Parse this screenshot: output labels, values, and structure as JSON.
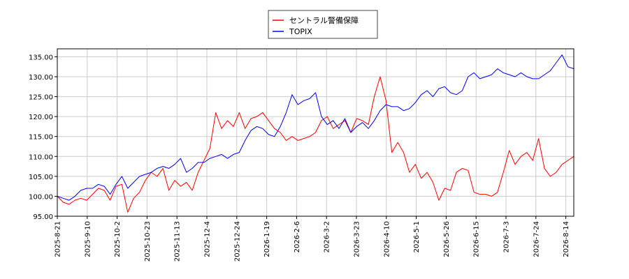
{
  "chart_data": {
    "type": "line",
    "title": "",
    "xlabel": "",
    "ylabel": "",
    "ylim": [
      95.0,
      137.0
    ],
    "yticks": [
      "95.00",
      "100.00",
      "105.00",
      "110.00",
      "115.00",
      "120.00",
      "125.00",
      "130.00",
      "135.00"
    ],
    "xticks": [
      "2025-8-21",
      "2025-9-10",
      "2025-10-2",
      "2025-10-23",
      "2025-11-13",
      "2025-12-4",
      "2025-12-24",
      "2026-1-19",
      "2026-2-6",
      "2026-3-2",
      "2026-3-23",
      "2026-4-10",
      "2026-5-1",
      "2026-5-26",
      "2026-6-15",
      "2026-7-3",
      "2026-7-24",
      "2026-8-14"
    ],
    "grid": true,
    "legend_position": "top-center",
    "series": [
      {
        "name": "セントラル警備保障",
        "color": "#ff0000",
        "values": [
          100.0,
          98.5,
          98.0,
          99.0,
          99.5,
          99.0,
          100.5,
          102.0,
          101.5,
          99.0,
          102.5,
          103.0,
          96.0,
          99.5,
          101.0,
          104.0,
          106.0,
          105.0,
          107.0,
          101.5,
          104.0,
          102.5,
          103.5,
          101.5,
          106.0,
          109.0,
          112.0,
          121.0,
          117.0,
          119.0,
          117.5,
          121.0,
          117.0,
          119.5,
          120.0,
          121.0,
          119.0,
          117.0,
          116.0,
          114.0,
          115.0,
          114.0,
          114.5,
          115.0,
          116.0,
          119.0,
          120.0,
          117.0,
          118.0,
          119.0,
          116.0,
          119.5,
          119.0,
          118.0,
          125.0,
          130.0,
          124.0,
          111.0,
          113.5,
          111.0,
          106.0,
          108.0,
          104.5,
          106.0,
          103.5,
          99.0,
          102.0,
          101.5,
          106.0,
          107.0,
          106.5,
          101.0,
          100.5,
          100.5,
          100.0,
          101.0,
          106.0,
          111.5,
          108.0,
          110.0,
          111.0,
          109.0,
          114.5,
          107.0,
          105.0,
          106.0,
          108.0,
          109.0,
          110.0
        ]
      },
      {
        "name": "TOPIX",
        "color": "#0000ff",
        "values": [
          100.0,
          99.5,
          99.0,
          100.0,
          101.5,
          102.0,
          102.0,
          103.0,
          102.5,
          100.5,
          103.0,
          105.0,
          102.0,
          103.5,
          105.0,
          105.5,
          106.0,
          107.0,
          107.5,
          107.0,
          108.0,
          109.5,
          106.0,
          107.0,
          108.5,
          108.5,
          109.5,
          110.0,
          110.5,
          109.5,
          110.5,
          111.0,
          114.0,
          116.5,
          117.5,
          117.0,
          115.5,
          115.0,
          117.5,
          121.0,
          125.5,
          123.0,
          124.0,
          124.5,
          126.0,
          120.0,
          118.0,
          119.0,
          117.0,
          119.5,
          116.0,
          117.5,
          118.5,
          117.0,
          119.0,
          121.5,
          123.0,
          122.5,
          122.5,
          121.5,
          122.0,
          123.5,
          125.5,
          126.5,
          125.0,
          127.0,
          127.5,
          126.0,
          125.5,
          126.5,
          130.0,
          131.0,
          129.5,
          130.0,
          130.5,
          132.0,
          131.0,
          130.5,
          130.0,
          131.0,
          130.0,
          129.5,
          129.5,
          130.5,
          131.5,
          133.5,
          135.5,
          132.5,
          132.0
        ]
      }
    ]
  }
}
